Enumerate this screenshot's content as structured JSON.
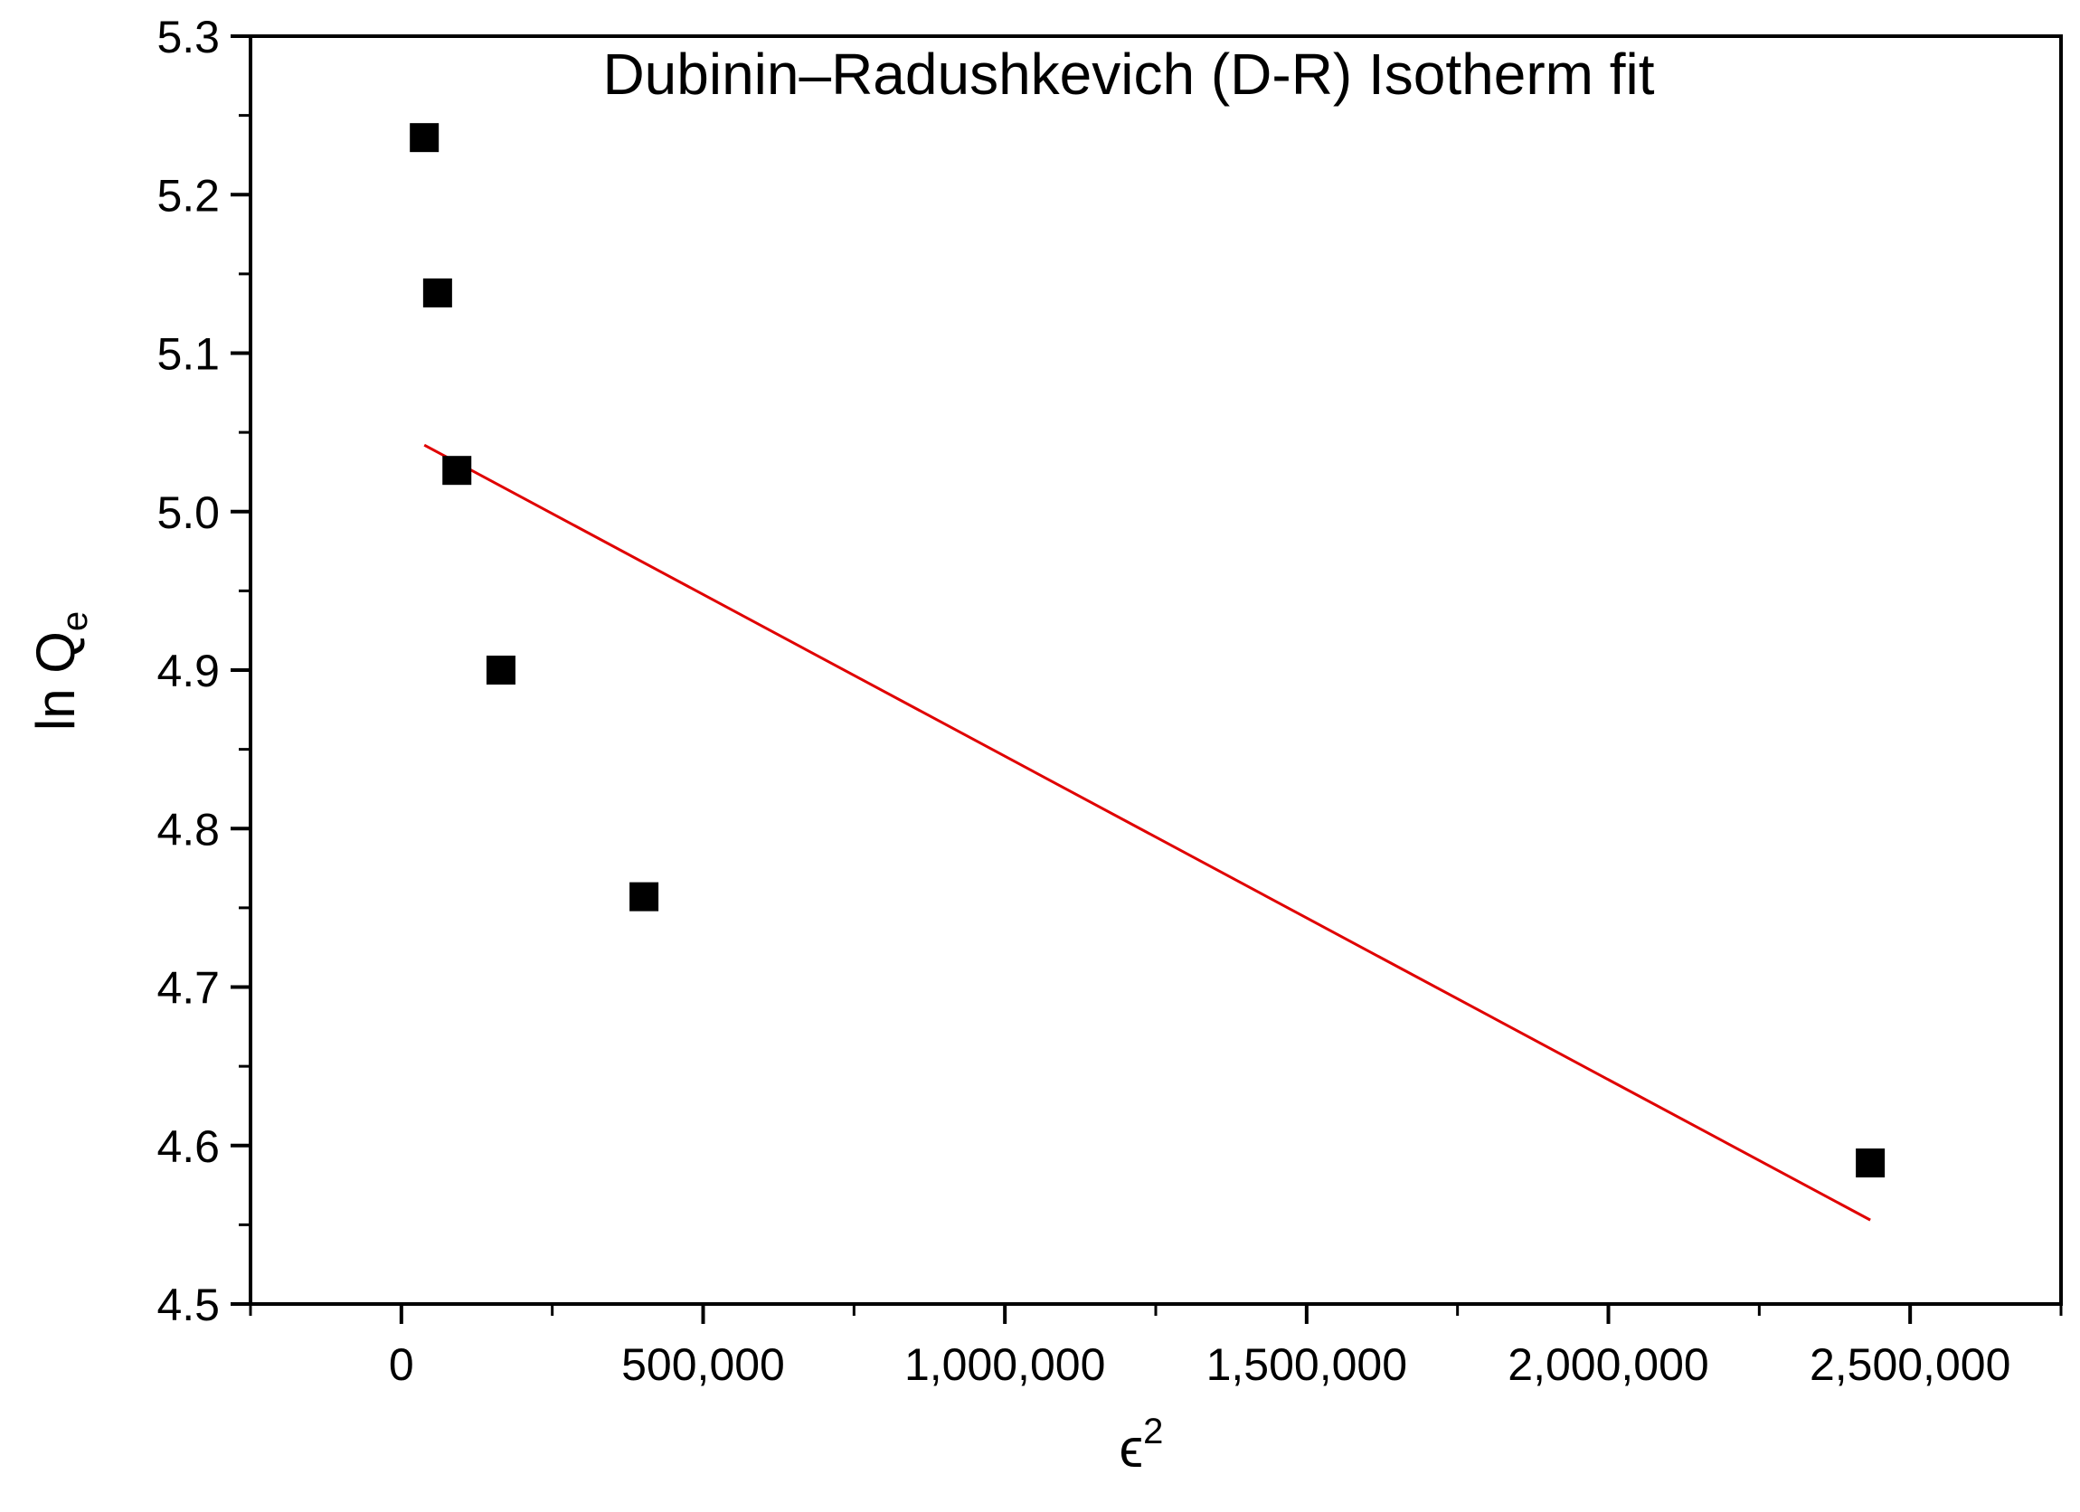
{
  "chart_data": {
    "type": "scatter",
    "title": "Dubinin–Radushkevich (D-R) Isotherm fit",
    "xlabel_main": "ϵ",
    "xlabel_sup": "2",
    "ylabel_main": "ln Q",
    "ylabel_sub": "e",
    "xlim": [
      -250000,
      2750000
    ],
    "ylim": [
      4.5,
      5.3
    ],
    "x_ticks": [
      0,
      500000,
      1000000,
      1500000,
      2000000,
      2500000
    ],
    "x_tick_labels": [
      "0",
      "500,000",
      "1,000,000",
      "1,500,000",
      "2,000,000",
      "2,500,000"
    ],
    "y_ticks": [
      4.5,
      4.6,
      4.7,
      4.8,
      4.9,
      5.0,
      5.1,
      5.2,
      5.3
    ],
    "y_tick_labels": [
      "4.5",
      "4.6",
      "4.7",
      "4.8",
      "4.9",
      "5.0",
      "5.1",
      "5.2",
      "5.3"
    ],
    "grid": false,
    "series": [
      {
        "marker": "square",
        "color": "#000000",
        "points": [
          {
            "x": 38000,
            "y": 5.236
          },
          {
            "x": 60000,
            "y": 5.138
          },
          {
            "x": 92000,
            "y": 5.026
          },
          {
            "x": 165000,
            "y": 4.9
          },
          {
            "x": 402000,
            "y": 4.757
          },
          {
            "x": 2434000,
            "y": 4.589
          }
        ]
      }
    ],
    "fit_line": {
      "color": "#e00000",
      "x": [
        38000,
        2434000
      ],
      "y": [
        5.042,
        4.553
      ]
    }
  }
}
